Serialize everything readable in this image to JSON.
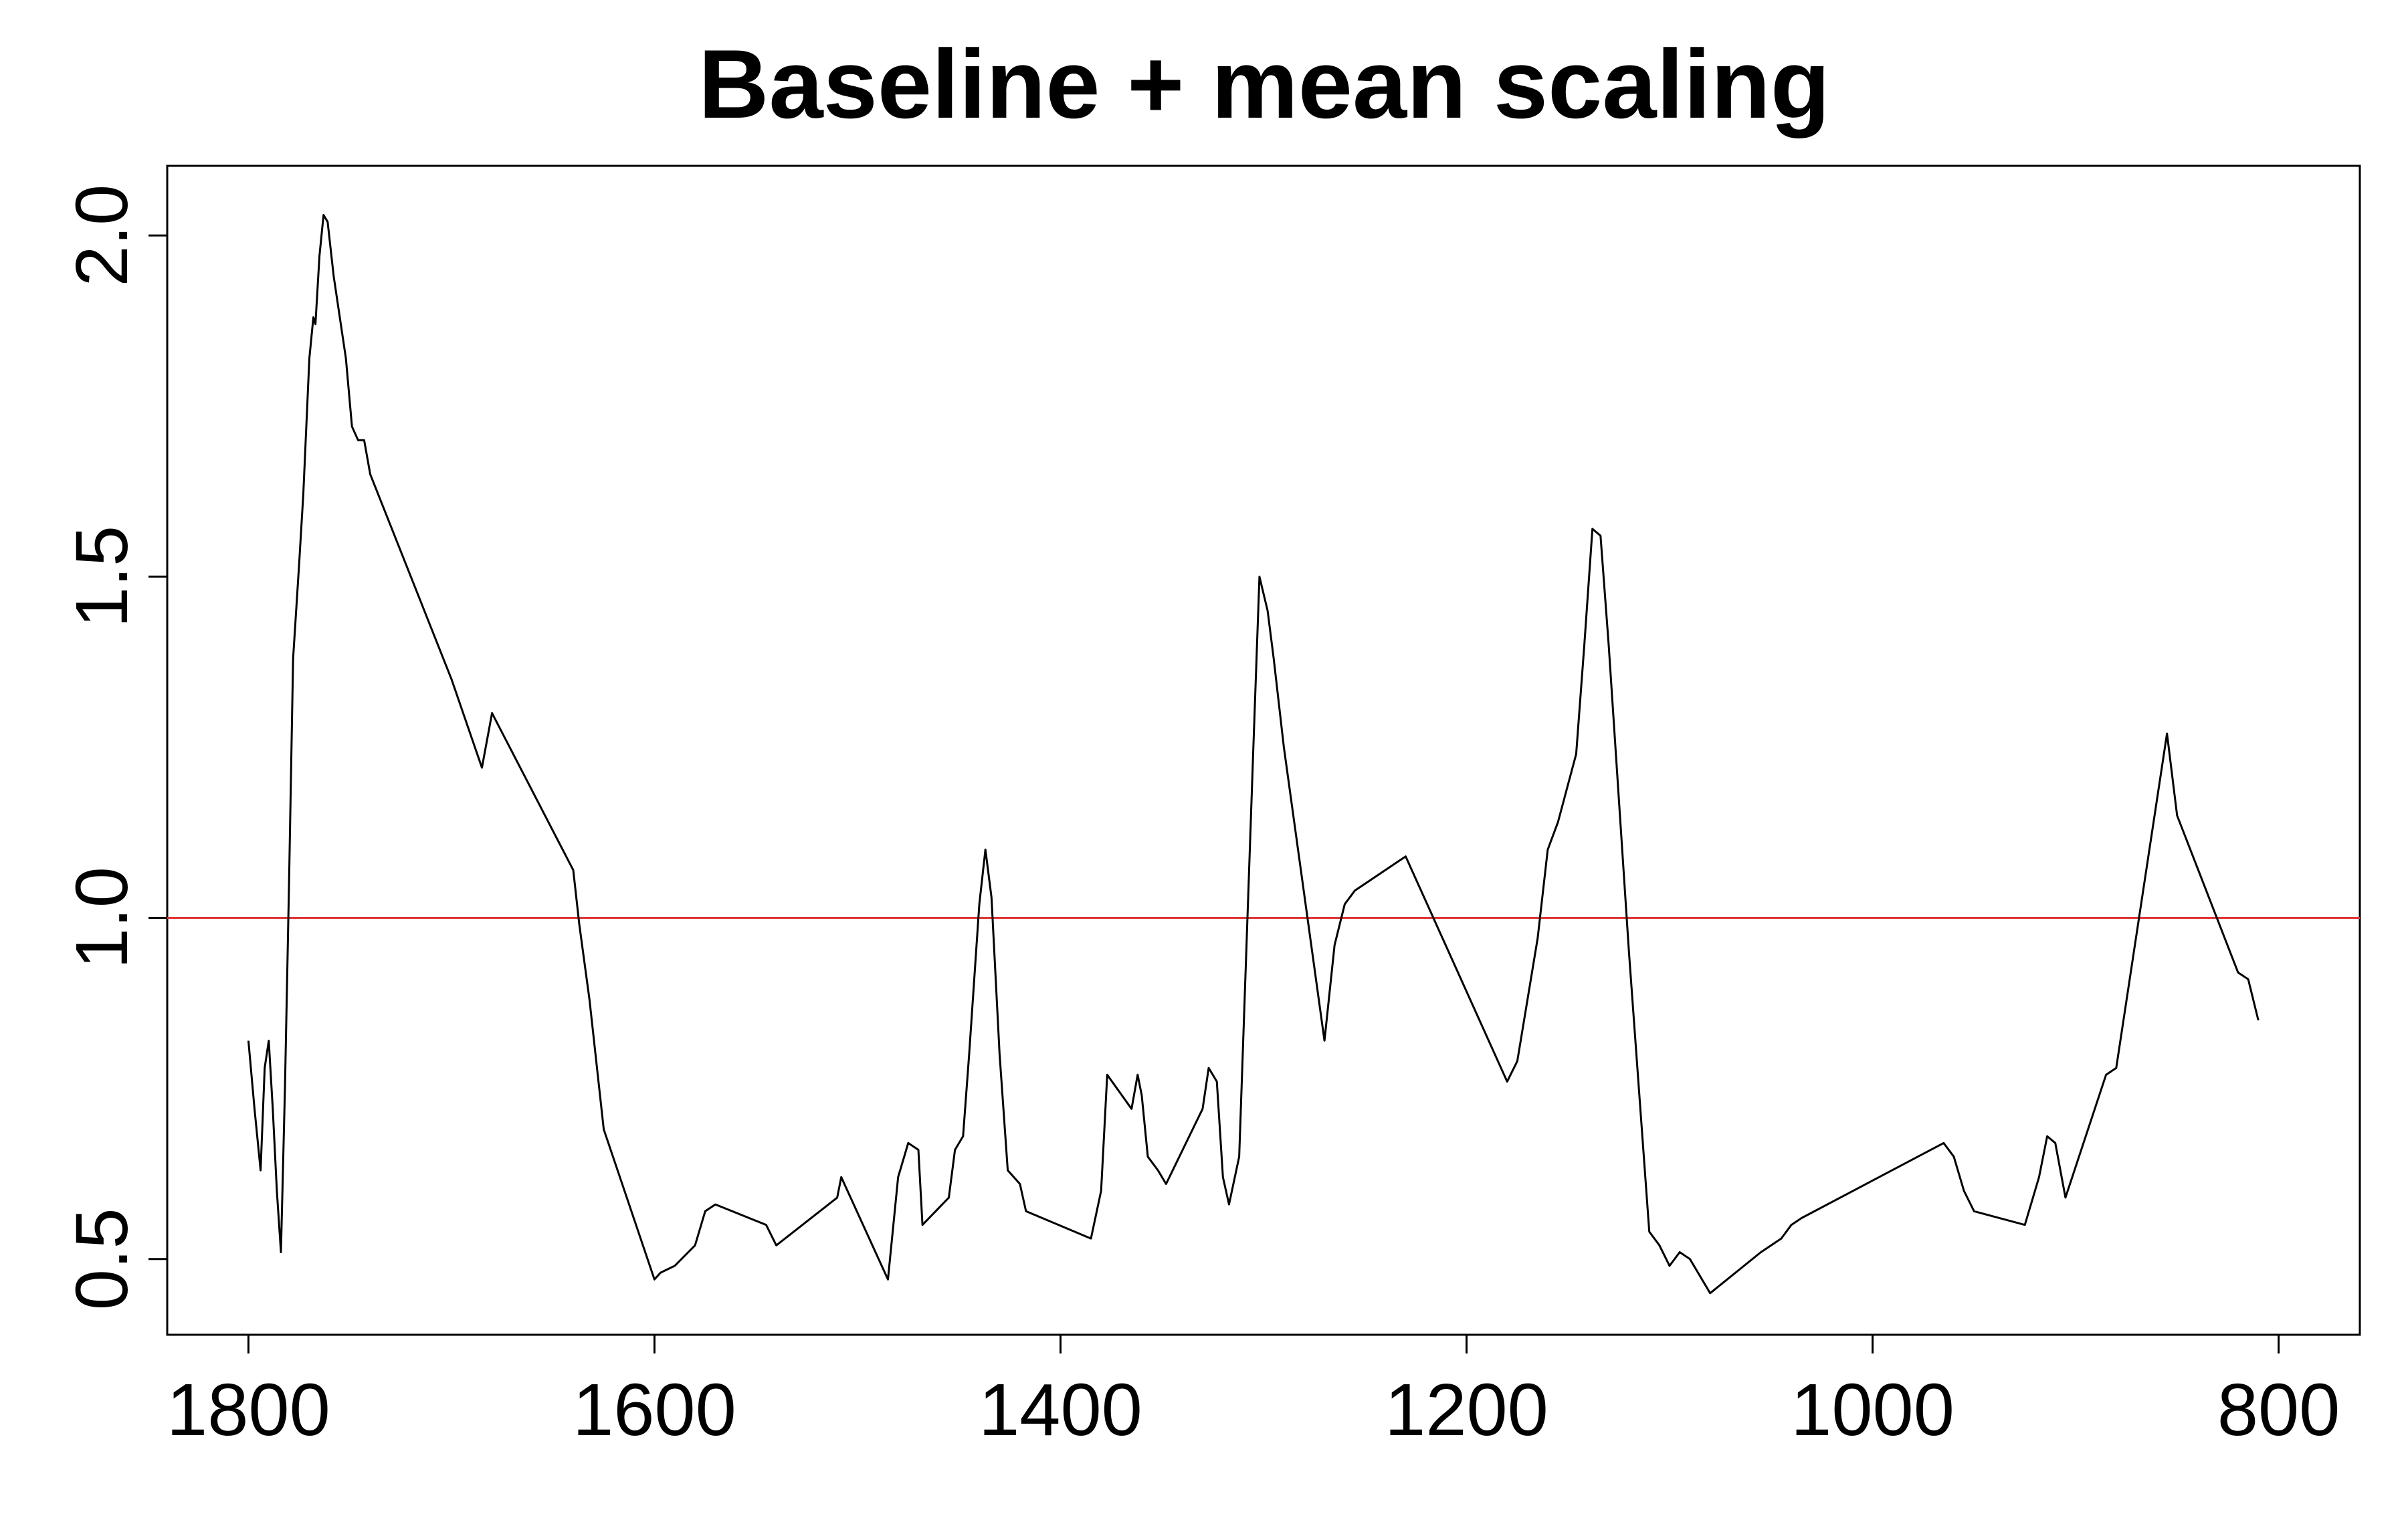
{
  "chart_data": {
    "type": "line",
    "title": "Baseline + mean scaling",
    "xlabel": "",
    "ylabel": "",
    "x_reversed": true,
    "xlim": [
      1840,
      760
    ],
    "ylim": [
      0.389,
      2.102
    ],
    "x_ticks": [
      1800,
      1600,
      1400,
      1200,
      1000,
      800
    ],
    "y_ticks": [
      0.5,
      1.0,
      1.5,
      2.0
    ],
    "x_tick_labels": [
      "1800",
      "1600",
      "1400",
      "1200",
      "1000",
      "800"
    ],
    "y_tick_labels": [
      "0.5",
      "1.0",
      "1.5",
      "2.0"
    ],
    "grid": false,
    "legend": "none",
    "reference_line": {
      "y": 1.0,
      "color": "#e03030"
    },
    "series": [
      {
        "color": "#000000",
        "points": [
          [
            1800,
            0.82
          ],
          [
            1797,
            0.72
          ],
          [
            1794,
            0.63
          ],
          [
            1792,
            0.78
          ],
          [
            1790,
            0.82
          ],
          [
            1788,
            0.72
          ],
          [
            1786,
            0.6
          ],
          [
            1784,
            0.51
          ],
          [
            1782,
            0.75
          ],
          [
            1780,
            1.05
          ],
          [
            1778,
            1.38
          ],
          [
            1775,
            1.52
          ],
          [
            1773,
            1.62
          ],
          [
            1770,
            1.82
          ],
          [
            1768,
            1.88
          ],
          [
            1767,
            1.87
          ],
          [
            1765,
            1.97
          ],
          [
            1763,
            2.03
          ],
          [
            1761,
            2.02
          ],
          [
            1758,
            1.94
          ],
          [
            1755,
            1.88
          ],
          [
            1752,
            1.82
          ],
          [
            1749,
            1.72
          ],
          [
            1746,
            1.7
          ],
          [
            1743,
            1.7
          ],
          [
            1740,
            1.65
          ],
          [
            1700,
            1.35
          ],
          [
            1685,
            1.22
          ],
          [
            1680,
            1.3
          ],
          [
            1640,
            1.07
          ],
          [
            1637,
            0.99
          ],
          [
            1632,
            0.88
          ],
          [
            1625,
            0.69
          ],
          [
            1600,
            0.47
          ],
          [
            1597,
            0.48
          ],
          [
            1590,
            0.49
          ],
          [
            1580,
            0.52
          ],
          [
            1575,
            0.57
          ],
          [
            1570,
            0.58
          ],
          [
            1545,
            0.55
          ],
          [
            1540,
            0.52
          ],
          [
            1510,
            0.59
          ],
          [
            1508,
            0.62
          ],
          [
            1485,
            0.47
          ],
          [
            1480,
            0.62
          ],
          [
            1475,
            0.67
          ],
          [
            1470,
            0.66
          ],
          [
            1468,
            0.55
          ],
          [
            1455,
            0.59
          ],
          [
            1452,
            0.66
          ],
          [
            1448,
            0.68
          ],
          [
            1445,
            0.8
          ],
          [
            1440,
            1.02
          ],
          [
            1437,
            1.1
          ],
          [
            1434,
            1.03
          ],
          [
            1430,
            0.8
          ],
          [
            1426,
            0.63
          ],
          [
            1420,
            0.61
          ],
          [
            1417,
            0.57
          ],
          [
            1385,
            0.53
          ],
          [
            1380,
            0.6
          ],
          [
            1377,
            0.77
          ],
          [
            1365,
            0.72
          ],
          [
            1362,
            0.77
          ],
          [
            1360,
            0.74
          ],
          [
            1357,
            0.65
          ],
          [
            1352,
            0.63
          ],
          [
            1348,
            0.61
          ],
          [
            1330,
            0.72
          ],
          [
            1327,
            0.78
          ],
          [
            1323,
            0.76
          ],
          [
            1320,
            0.62
          ],
          [
            1317,
            0.58
          ],
          [
            1312,
            0.65
          ],
          [
            1305,
            1.25
          ],
          [
            1302,
            1.5
          ],
          [
            1298,
            1.45
          ],
          [
            1295,
            1.38
          ],
          [
            1290,
            1.25
          ],
          [
            1270,
            0.82
          ],
          [
            1265,
            0.96
          ],
          [
            1260,
            1.02
          ],
          [
            1255,
            1.04
          ],
          [
            1240,
            1.07
          ],
          [
            1235,
            1.08
          ],
          [
            1230,
            1.09
          ],
          [
            1180,
            0.76
          ],
          [
            1175,
            0.79
          ],
          [
            1170,
            0.88
          ],
          [
            1165,
            0.97
          ],
          [
            1160,
            1.1
          ],
          [
            1155,
            1.14
          ],
          [
            1146,
            1.24
          ],
          [
            1142,
            1.4
          ],
          [
            1138,
            1.57
          ],
          [
            1134,
            1.56
          ],
          [
            1130,
            1.4
          ],
          [
            1120,
            0.95
          ],
          [
            1110,
            0.54
          ],
          [
            1105,
            0.52
          ],
          [
            1100,
            0.49
          ],
          [
            1095,
            0.51
          ],
          [
            1090,
            0.5
          ],
          [
            1080,
            0.45
          ],
          [
            1055,
            0.51
          ],
          [
            1045,
            0.53
          ],
          [
            1040,
            0.55
          ],
          [
            1035,
            0.56
          ],
          [
            965,
            0.67
          ],
          [
            960,
            0.65
          ],
          [
            955,
            0.6
          ],
          [
            950,
            0.57
          ],
          [
            925,
            0.55
          ],
          [
            918,
            0.62
          ],
          [
            914,
            0.68
          ],
          [
            910,
            0.67
          ],
          [
            905,
            0.59
          ],
          [
            885,
            0.77
          ],
          [
            880,
            0.78
          ],
          [
            855,
            1.27
          ],
          [
            850,
            1.15
          ],
          [
            820,
            0.92
          ],
          [
            815,
            0.91
          ],
          [
            810,
            0.85
          ]
        ]
      }
    ]
  }
}
